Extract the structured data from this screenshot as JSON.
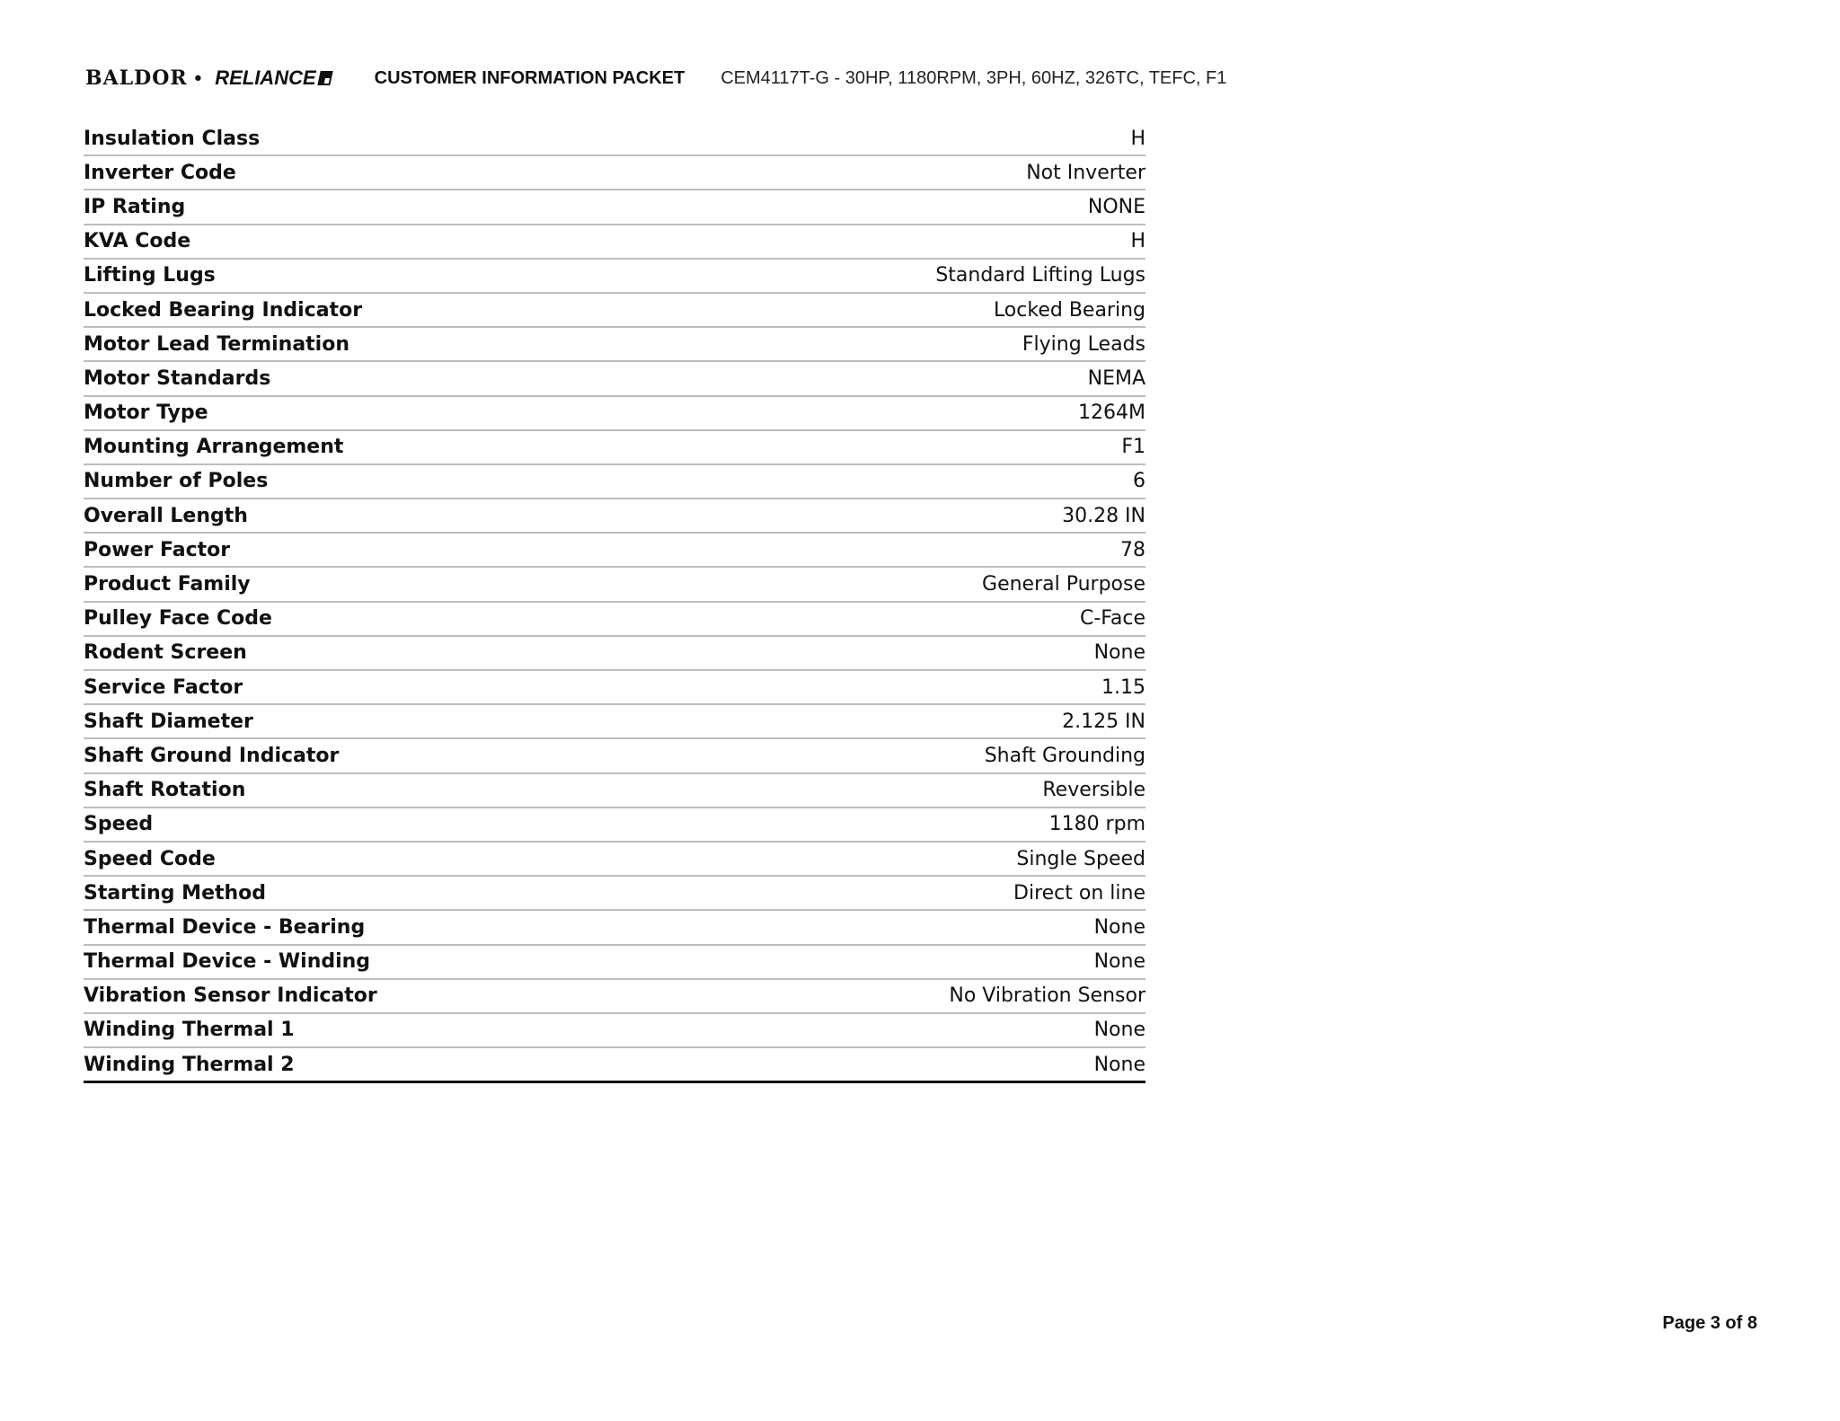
{
  "header": {
    "logo_text": "BALDOR • RELIANCE",
    "logo_left": "BALDOR",
    "logo_right": "RELIANCE",
    "title": "CUSTOMER INFORMATION PACKET",
    "subtitle": "CEM4117T-G - 30HP, 1180RPM, 3PH, 60HZ, 326TC, TEFC, F1"
  },
  "specs": [
    {
      "label": "Insulation Class",
      "value": "H"
    },
    {
      "label": "Inverter Code",
      "value": "Not Inverter"
    },
    {
      "label": "IP Rating",
      "value": "NONE"
    },
    {
      "label": "KVA Code",
      "value": "H"
    },
    {
      "label": "Lifting Lugs",
      "value": "Standard Lifting Lugs"
    },
    {
      "label": "Locked Bearing Indicator",
      "value": "Locked Bearing"
    },
    {
      "label": "Motor Lead Termination",
      "value": "Flying Leads"
    },
    {
      "label": "Motor Standards",
      "value": "NEMA"
    },
    {
      "label": "Motor Type",
      "value": "1264M"
    },
    {
      "label": "Mounting Arrangement",
      "value": "F1"
    },
    {
      "label": "Number of Poles",
      "value": "6"
    },
    {
      "label": "Overall Length",
      "value": "30.28 IN"
    },
    {
      "label": "Power Factor",
      "value": "78"
    },
    {
      "label": "Product Family",
      "value": "General Purpose"
    },
    {
      "label": "Pulley Face Code",
      "value": "C-Face"
    },
    {
      "label": "Rodent Screen",
      "value": "None"
    },
    {
      "label": "Service Factor",
      "value": "1.15"
    },
    {
      "label": "Shaft Diameter",
      "value": "2.125 IN"
    },
    {
      "label": "Shaft Ground Indicator",
      "value": "Shaft Grounding"
    },
    {
      "label": "Shaft Rotation",
      "value": "Reversible"
    },
    {
      "label": "Speed",
      "value": "1180 rpm"
    },
    {
      "label": "Speed Code",
      "value": "Single Speed"
    },
    {
      "label": "Starting Method",
      "value": "Direct on line"
    },
    {
      "label": "Thermal Device - Bearing",
      "value": "None"
    },
    {
      "label": "Thermal Device - Winding",
      "value": "None"
    },
    {
      "label": "Vibration Sensor Indicator",
      "value": "No Vibration Sensor"
    },
    {
      "label": "Winding Thermal 1",
      "value": "None"
    },
    {
      "label": "Winding Thermal 2",
      "value": "None"
    }
  ],
  "footer": {
    "page": "Page 3 of 8"
  }
}
